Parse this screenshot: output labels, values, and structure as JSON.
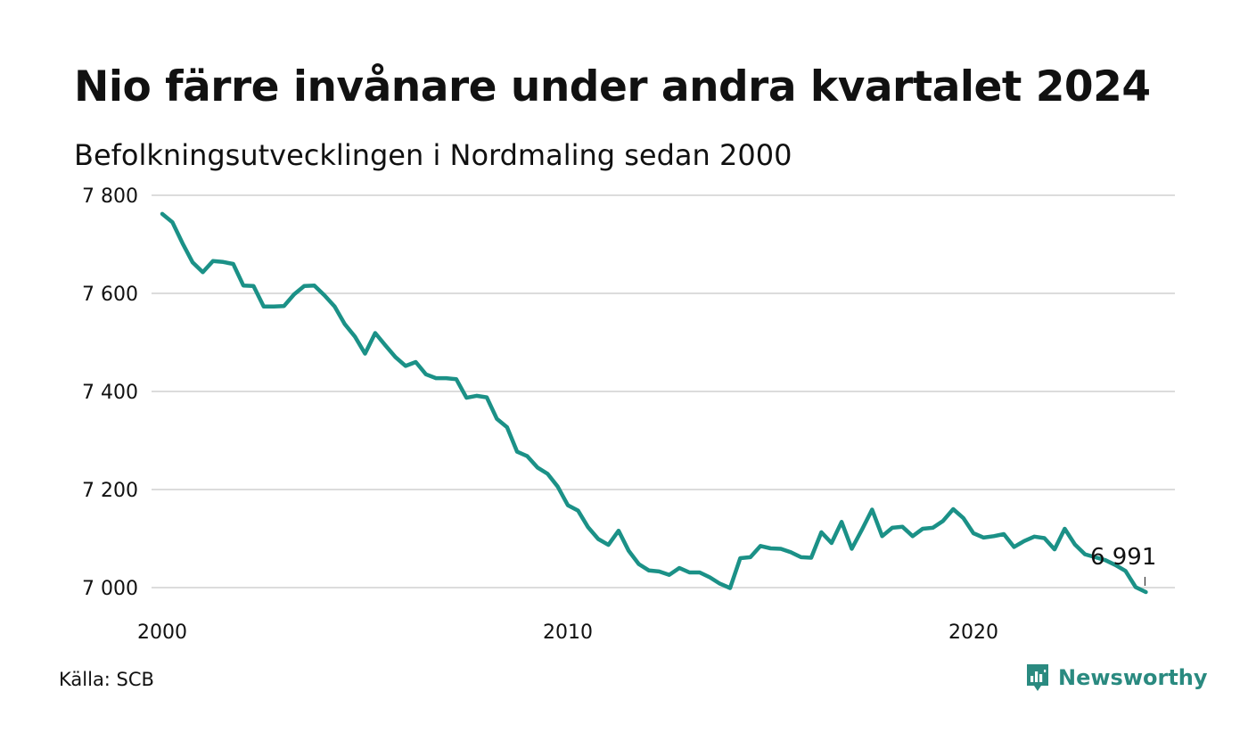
{
  "header": {
    "title": "Nio färre invånare under andra kvartalet 2024",
    "subtitle": "Befolkningsutvecklingen i Nordmaling sedan 2000"
  },
  "footer": {
    "source": "Källa: SCB",
    "brand": "Newsworthy"
  },
  "colors": {
    "line": "#1b9187",
    "grid": "#dcdcdc",
    "text": "#111111",
    "brand": "#2a8a80"
  },
  "chart_data": {
    "type": "line",
    "title": "Nio färre invånare under andra kvartalet 2024",
    "subtitle": "Befolkningsutvecklingen i Nordmaling sedan 2000",
    "xlabel": "",
    "ylabel": "",
    "xlim": [
      2000.0,
      2025.0
    ],
    "ylim": [
      6970,
      7800
    ],
    "x_ticks": [
      {
        "value": 2000,
        "label": "2000"
      },
      {
        "value": 2010,
        "label": "2010"
      },
      {
        "value": 2020,
        "label": "2020"
      }
    ],
    "y_ticks": [
      {
        "value": 7000,
        "label": "7 000"
      },
      {
        "value": 7200,
        "label": "7 200"
      },
      {
        "value": 7400,
        "label": "7 400"
      },
      {
        "value": 7600,
        "label": "7 600"
      },
      {
        "value": 7800,
        "label": "7 800"
      }
    ],
    "grid": true,
    "x_frequency": "quarterly",
    "series": [
      {
        "x": [
          2000.0,
          2000.25,
          2000.5,
          2000.75,
          2001.0,
          2001.25,
          2001.5,
          2001.75,
          2002.0,
          2002.25,
          2002.5,
          2002.75,
          2003.0,
          2003.25,
          2003.5,
          2003.75,
          2004.0,
          2004.25,
          2004.5,
          2004.75,
          2005.0,
          2005.25,
          2005.5,
          2005.75,
          2006.0,
          2006.25,
          2006.5,
          2006.75,
          2007.0,
          2007.25,
          2007.5,
          2007.75,
          2008.0,
          2008.25,
          2008.5,
          2008.75,
          2009.0,
          2009.25,
          2009.5,
          2009.75,
          2010.0,
          2010.25,
          2010.5,
          2010.75,
          2011.0,
          2011.25,
          2011.5,
          2011.75,
          2012.0,
          2012.25,
          2012.5,
          2012.75,
          2013.0,
          2013.25,
          2013.5,
          2013.75,
          2014.0,
          2014.25,
          2014.5,
          2014.75,
          2015.0,
          2015.25,
          2015.5,
          2015.75,
          2016.0,
          2016.25,
          2016.5,
          2016.75,
          2017.0,
          2017.25,
          2017.5,
          2017.75,
          2018.0,
          2018.25,
          2018.5,
          2018.75,
          2019.0,
          2019.25,
          2019.5,
          2019.75,
          2020.0,
          2020.25,
          2020.5,
          2020.75,
          2021.0,
          2021.25,
          2021.5,
          2021.75,
          2022.0,
          2022.25,
          2022.5,
          2022.75,
          2023.0,
          2023.25,
          2023.5,
          2023.75,
          2024.0,
          2024.25
        ],
        "values": [
          7762,
          7745,
          7702,
          7663,
          7643,
          7666,
          7664,
          7660,
          7616,
          7615,
          7573,
          7573,
          7574,
          7598,
          7615,
          7616,
          7596,
          7573,
          7537,
          7512,
          7477,
          7519,
          7494,
          7470,
          7452,
          7460,
          7435,
          7427,
          7427,
          7425,
          7387,
          7391,
          7388,
          7344,
          7327,
          7277,
          7268,
          7245,
          7232,
          7206,
          7168,
          7157,
          7123,
          7099,
          7087,
          7116,
          7075,
          7048,
          7035,
          7033,
          7026,
          7040,
          7031,
          7031,
          7021,
          7008,
          6999,
          7060,
          7062,
          7085,
          7080,
          7079,
          7072,
          7062,
          7061,
          7113,
          7091,
          7134,
          7079,
          7118,
          7159,
          7105,
          7122,
          7124,
          7105,
          7120,
          7122,
          7136,
          7160,
          7142,
          7111,
          7102,
          7105,
          7109,
          7083,
          7095,
          7104,
          7101,
          7078,
          7120,
          7088,
          7068,
          7062,
          7056,
          7046,
          7034,
          7001,
          6991
        ]
      }
    ],
    "annotations": [
      {
        "x": 2024.25,
        "y": 6991,
        "label": "6 991"
      }
    ]
  }
}
